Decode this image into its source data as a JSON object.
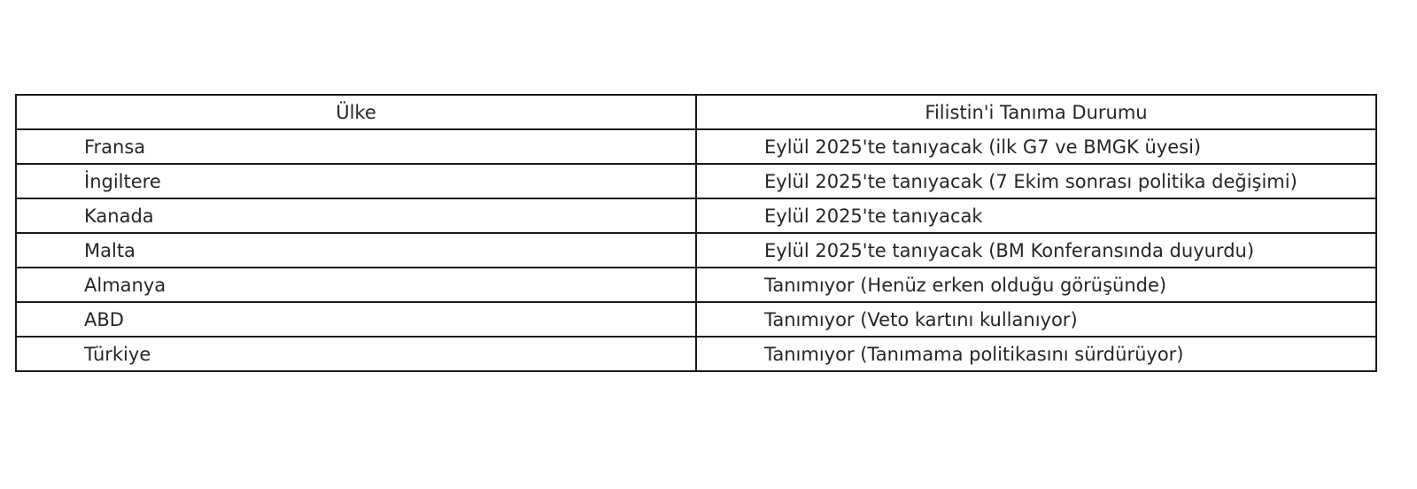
{
  "table": {
    "headers": [
      "Ülke",
      "Filistin'i Tanıma Durumu"
    ],
    "rows": [
      [
        "Fransa",
        "Eylül 2025'te tanıyacak (ilk G7 ve BMGK üyesi)"
      ],
      [
        "İngiltere",
        "Eylül 2025'te tanıyacak (7 Ekim sonrası politika değişimi)"
      ],
      [
        "Kanada",
        "Eylül 2025'te tanıyacak"
      ],
      [
        "Malta",
        "Eylül 2025'te tanıyacak (BM Konferansında duyurdu)"
      ],
      [
        "Almanya",
        "Tanımıyor (Henüz erken olduğu görüşünde)"
      ],
      [
        "ABD",
        "Tanımıyor (Veto kartını kullanıyor)"
      ],
      [
        "Türkiye",
        "Tanımıyor (Tanımama politikasını sürdürüyor)"
      ]
    ]
  }
}
